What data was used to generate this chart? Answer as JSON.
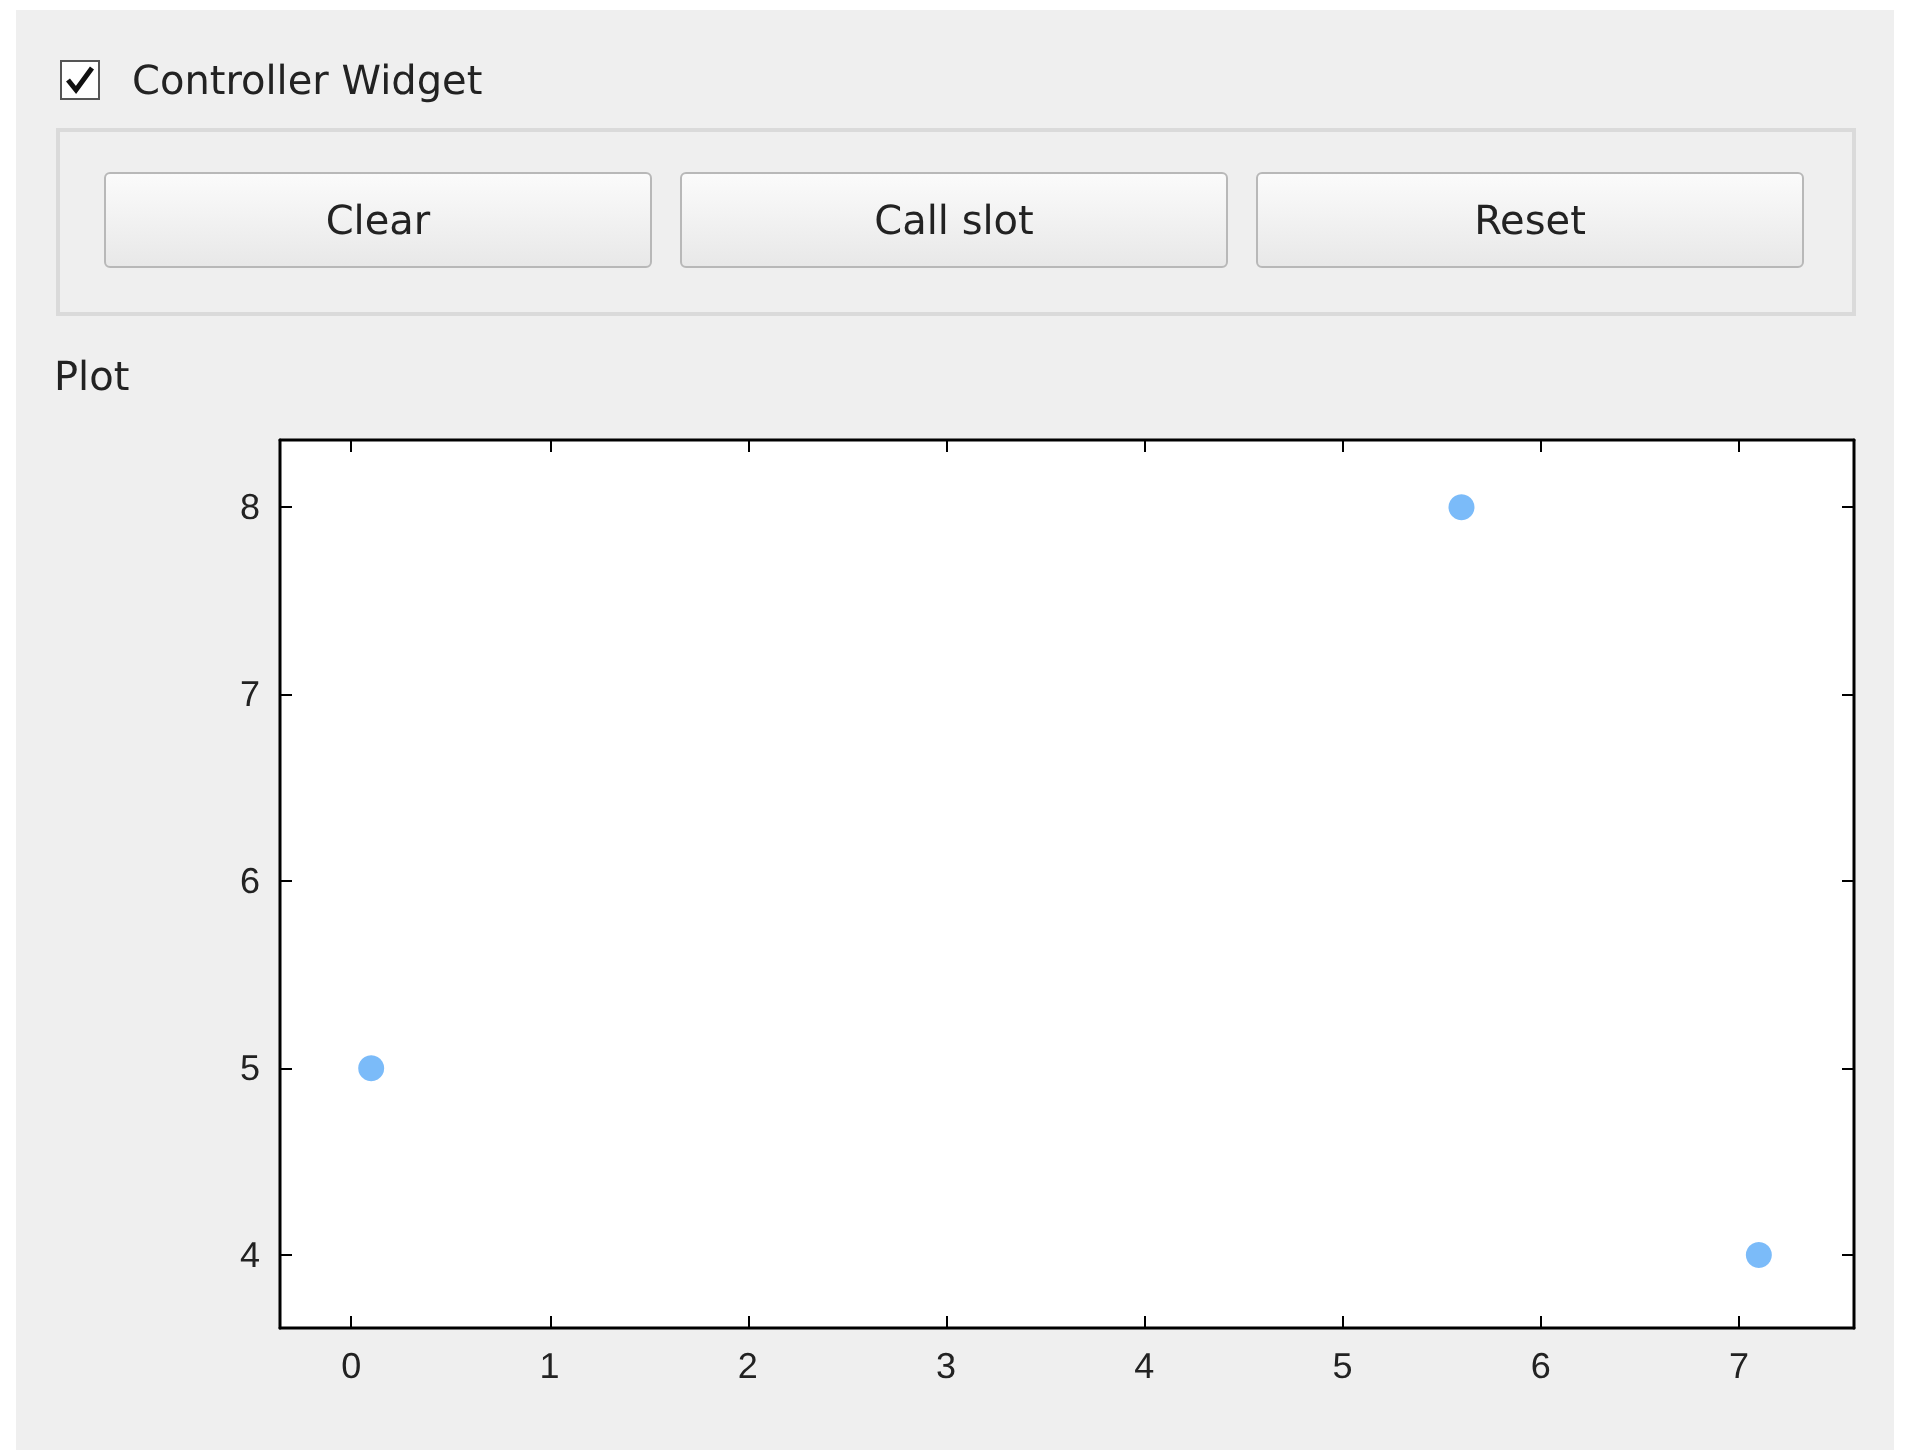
{
  "chart_data": {
    "type": "scatter",
    "title": "Plot",
    "annotations": [
      "Controller Widget",
      "Clear",
      "Call slot",
      "Reset"
    ],
    "x": [
      0.1,
      5.6,
      7.1
    ],
    "series": [
      {
        "color": "#5aaaf7",
        "values": [
          5,
          8,
          4
        ]
      }
    ],
    "xlim": [
      -0.36,
      7.58
    ],
    "xticks": [
      0,
      1,
      2,
      3,
      4,
      5,
      6,
      7
    ],
    "ylim": [
      3.61,
      8.36
    ],
    "yticks": [
      4,
      5,
      6,
      7,
      8
    ],
    "grid": false,
    "marker": "circle"
  }
}
